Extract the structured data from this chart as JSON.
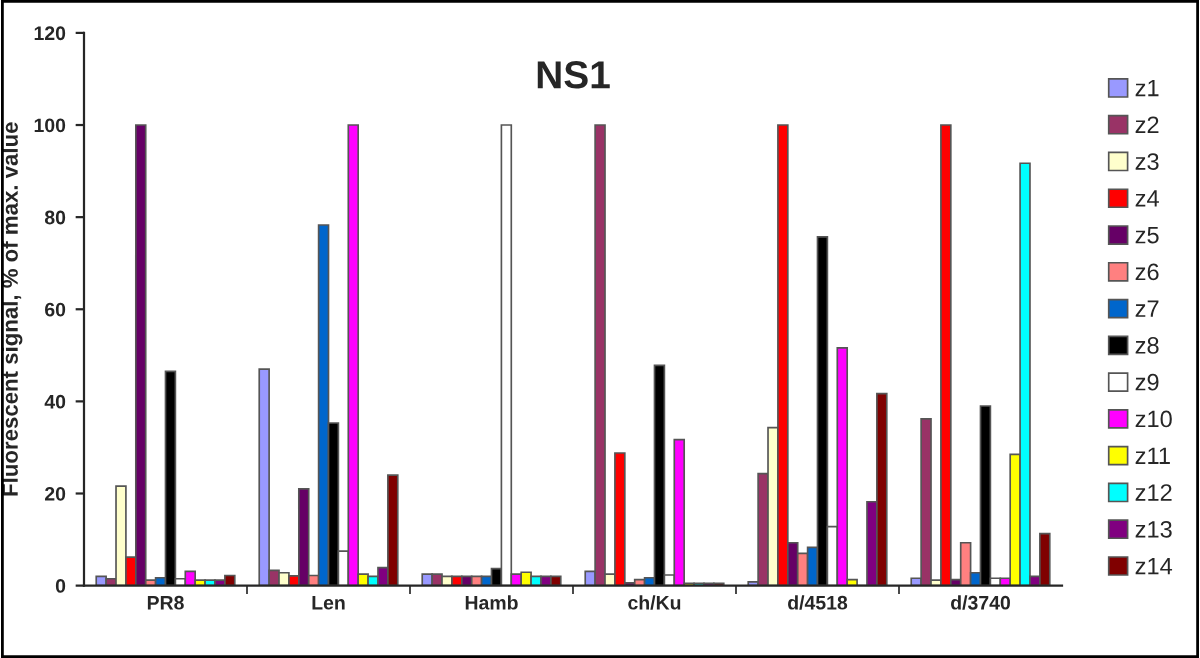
{
  "chart_data": {
    "type": "bar",
    "title": "NS1",
    "ylabel": "Fluorescent signal, % of max. value",
    "categories": [
      "PR8",
      "Len",
      "Hamb",
      "ch/Ku",
      "d/4518",
      "d/3740"
    ],
    "ylim": [
      0,
      120
    ],
    "yticks": [
      0,
      20,
      40,
      60,
      80,
      100,
      120
    ],
    "grid": false,
    "legend": "right",
    "series": [
      {
        "name": "z1",
        "color": "#9999ff",
        "values": [
          2,
          47,
          2.5,
          3.1,
          0.8,
          1.6
        ]
      },
      {
        "name": "z2",
        "color": "#993366",
        "values": [
          1.5,
          3.3,
          2.5,
          100,
          24.3,
          36.2
        ]
      },
      {
        "name": "z3",
        "color": "#ffffcc",
        "values": [
          21.6,
          2.8,
          2,
          2.5,
          34.3,
          1.2
        ]
      },
      {
        "name": "z4",
        "color": "#ff0000",
        "values": [
          6.2,
          2.1,
          2,
          28.8,
          100,
          100
        ]
      },
      {
        "name": "z5",
        "color": "#660066",
        "values": [
          100,
          21,
          2,
          0.6,
          9.3,
          1.3
        ]
      },
      {
        "name": "z6",
        "color": "#ff8080",
        "values": [
          1.2,
          2.2,
          2,
          1.3,
          7,
          9.3
        ]
      },
      {
        "name": "z7",
        "color": "#0066cc",
        "values": [
          1.7,
          78.3,
          2,
          1.7,
          8.3,
          2.8
        ]
      },
      {
        "name": "z8",
        "color": "#000000",
        "values": [
          46.5,
          35.3,
          3.7,
          47.8,
          75.7,
          39
        ]
      },
      {
        "name": "z9",
        "color": "#ffffff",
        "values": [
          1.5,
          7.5,
          100,
          2.3,
          12.8,
          1.6
        ]
      },
      {
        "name": "z10",
        "color": "#ff00ff",
        "values": [
          3.1,
          100,
          2.5,
          31.7,
          51.6,
          1.6
        ]
      },
      {
        "name": "z11",
        "color": "#ffff00",
        "values": [
          1.2,
          2.5,
          2.9,
          0.5,
          1.3,
          28.5
        ]
      },
      {
        "name": "z12",
        "color": "#00ffff",
        "values": [
          1.2,
          2,
          2,
          0.5,
          null,
          91.7
        ]
      },
      {
        "name": "z13",
        "color": "#800080",
        "values": [
          1.2,
          3.9,
          2,
          0.5,
          18.2,
          2
        ]
      },
      {
        "name": "z14",
        "color": "#800000",
        "values": [
          2.2,
          24,
          2,
          0.5,
          41.7,
          11.3
        ]
      }
    ]
  }
}
